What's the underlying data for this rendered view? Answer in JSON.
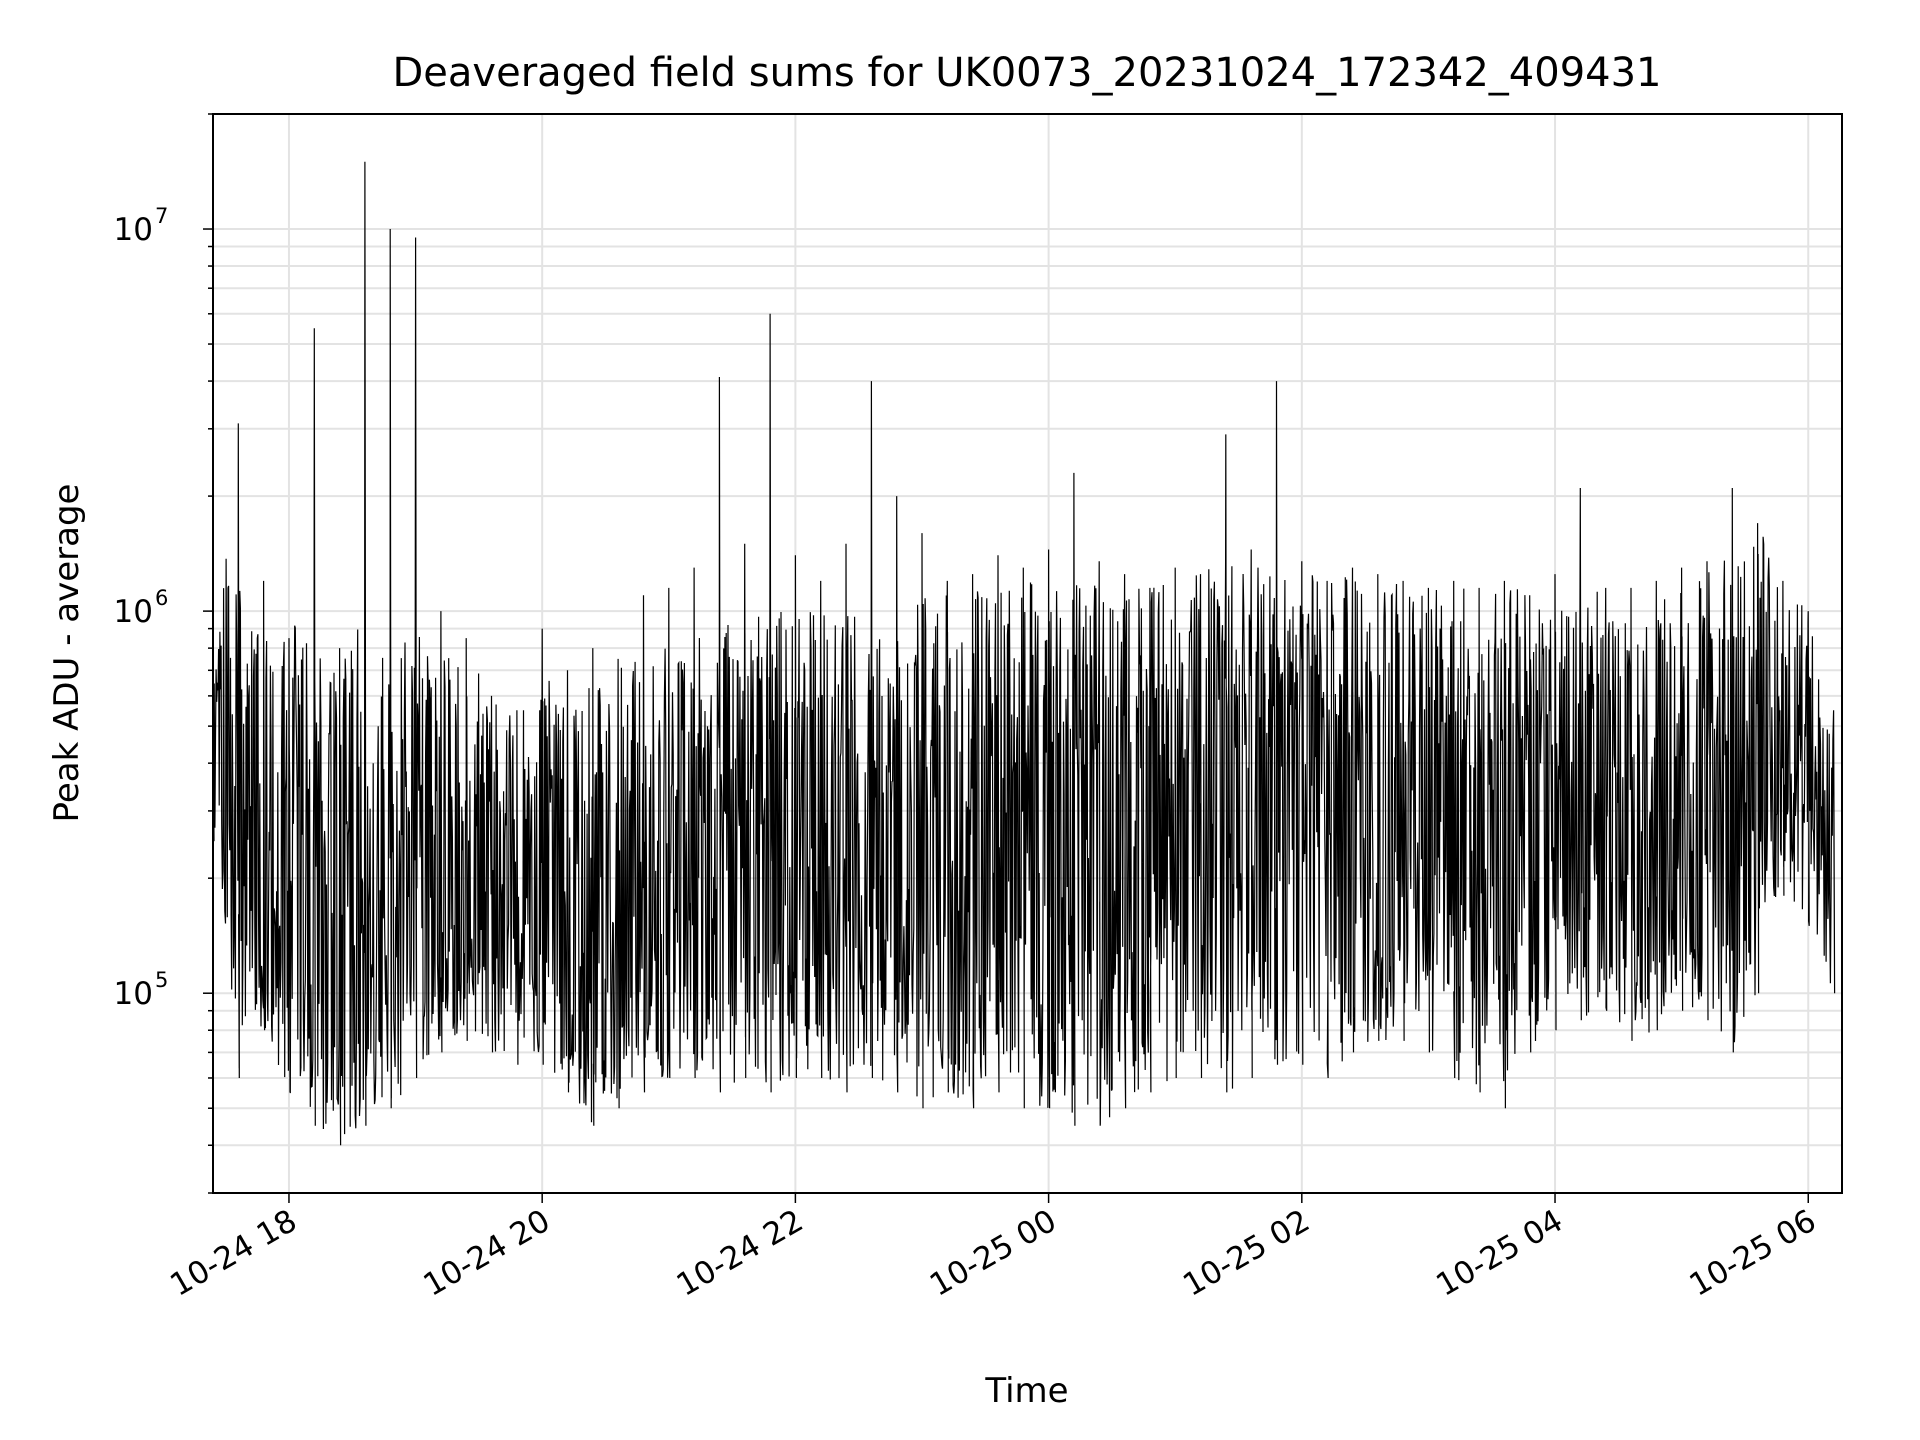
{
  "chart_data": {
    "type": "line",
    "title": "Deaveraged field sums for UK0073_20231024_172342_409431",
    "xlabel": "Time",
    "ylabel": "Peak ADU - average",
    "y_scale": "log",
    "ylim": [
      30000,
      20000000
    ],
    "xlim": [
      "2023-10-24 17:24",
      "2023-10-25 06:16"
    ],
    "grid": true,
    "legend": "none",
    "line_color": "#000000",
    "x_ticks": [
      {
        "value": "2023-10-24 18:00",
        "label": "10-24 18"
      },
      {
        "value": "2023-10-24 20:00",
        "label": "10-24 20"
      },
      {
        "value": "2023-10-24 22:00",
        "label": "10-24 22"
      },
      {
        "value": "2023-10-25 00:00",
        "label": "10-25 00"
      },
      {
        "value": "2023-10-25 02:00",
        "label": "10-25 02"
      },
      {
        "value": "2023-10-25 04:00",
        "label": "10-25 04"
      },
      {
        "value": "2023-10-25 06:00",
        "label": "10-25 06"
      }
    ],
    "y_ticks": [
      {
        "value": 100000,
        "base": "10",
        "exp": "5"
      },
      {
        "value": 1000000,
        "base": "10",
        "exp": "6"
      },
      {
        "value": 10000000,
        "base": "10",
        "exp": "7"
      }
    ],
    "series": [
      {
        "x": [
          "2023-10-24 17:24",
          "2023-10-24 17:36",
          "2023-10-24 17:48",
          "2023-10-24 18:00",
          "2023-10-24 18:12",
          "2023-10-24 18:24",
          "2023-10-24 18:36",
          "2023-10-24 18:48",
          "2023-10-24 19:00",
          "2023-10-24 19:12",
          "2023-10-24 19:24",
          "2023-10-24 19:36",
          "2023-10-24 19:48",
          "2023-10-24 20:00",
          "2023-10-24 20:12",
          "2023-10-24 20:24",
          "2023-10-24 20:36",
          "2023-10-24 20:48",
          "2023-10-24 21:00",
          "2023-10-24 21:12",
          "2023-10-24 21:24",
          "2023-10-24 21:36",
          "2023-10-24 21:48",
          "2023-10-24 22:00",
          "2023-10-24 22:12",
          "2023-10-24 22:24",
          "2023-10-24 22:36",
          "2023-10-24 22:48",
          "2023-10-24 23:00",
          "2023-10-24 23:12",
          "2023-10-24 23:24",
          "2023-10-24 23:36",
          "2023-10-24 23:48",
          "2023-10-25 00:00",
          "2023-10-25 00:12",
          "2023-10-25 00:24",
          "2023-10-25 00:36",
          "2023-10-25 00:48",
          "2023-10-25 01:00",
          "2023-10-25 01:12",
          "2023-10-25 01:24",
          "2023-10-25 01:36",
          "2023-10-25 01:48",
          "2023-10-25 02:00",
          "2023-10-25 02:12",
          "2023-10-25 02:24",
          "2023-10-25 02:36",
          "2023-10-25 02:48",
          "2023-10-25 03:00",
          "2023-10-25 03:12",
          "2023-10-25 03:24",
          "2023-10-25 03:36",
          "2023-10-25 03:48",
          "2023-10-25 04:00",
          "2023-10-25 04:12",
          "2023-10-25 04:24",
          "2023-10-25 04:36",
          "2023-10-25 04:48",
          "2023-10-25 05:00",
          "2023-10-25 05:12",
          "2023-10-25 05:24",
          "2023-10-25 05:36",
          "2023-10-25 05:48",
          "2023-10-25 06:00",
          "2023-10-25 06:12"
        ],
        "low": [
          250000,
          60000,
          80000,
          55000,
          45000,
          40000,
          45000,
          50000,
          60000,
          70000,
          75000,
          70000,
          65000,
          65000,
          55000,
          45000,
          50000,
          55000,
          60000,
          60000,
          55000,
          60000,
          55000,
          60000,
          60000,
          55000,
          60000,
          55000,
          50000,
          55000,
          50000,
          55000,
          50000,
          50000,
          45000,
          45000,
          50000,
          55000,
          60000,
          60000,
          55000,
          60000,
          65000,
          65000,
          60000,
          70000,
          75000,
          75000,
          70000,
          60000,
          55000,
          50000,
          70000,
          80000,
          85000,
          90000,
          75000,
          80000,
          90000,
          85000,
          70000,
          100000,
          180000,
          150000,
          100000
        ],
        "high": [
          600000,
          3100000,
          1200000,
          850000,
          5500000,
          800000,
          15000000,
          10000000,
          9500000,
          1000000,
          850000,
          600000,
          550000,
          900000,
          700000,
          800000,
          750000,
          1100000,
          1150000,
          1300000,
          4100000,
          1500000,
          6000000,
          1400000,
          1200000,
          1500000,
          4000000,
          2000000,
          1600000,
          1200000,
          1250000,
          1400000,
          1300000,
          1450000,
          2300000,
          1350000,
          1250000,
          1150000,
          1300000,
          1250000,
          2900000,
          1450000,
          4000000,
          1350000,
          1200000,
          1300000,
          1250000,
          1200000,
          1150000,
          1200000,
          1150000,
          1200000,
          1100000,
          1250000,
          2100000,
          1150000,
          1150000,
          1200000,
          1300000,
          1350000,
          2100000,
          1700000,
          1200000,
          1000000,
          550000
        ],
        "typical": [
          400000,
          300000,
          250000,
          250000,
          200000,
          180000,
          250000,
          200000,
          220000,
          200000,
          180000,
          170000,
          160000,
          170000,
          180000,
          170000,
          190000,
          200000,
          210000,
          220000,
          230000,
          240000,
          260000,
          260000,
          260000,
          250000,
          260000,
          270000,
          270000,
          280000,
          280000,
          290000,
          300000,
          300000,
          300000,
          290000,
          300000,
          310000,
          320000,
          330000,
          340000,
          330000,
          320000,
          320000,
          320000,
          310000,
          300000,
          300000,
          300000,
          300000,
          290000,
          280000,
          300000,
          300000,
          290000,
          280000,
          270000,
          280000,
          300000,
          320000,
          350000,
          420000,
          480000,
          450000,
          350000
        ]
      }
    ]
  }
}
